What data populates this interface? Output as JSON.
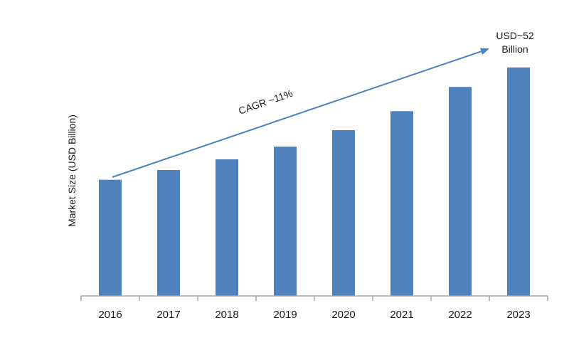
{
  "chart_data": {
    "type": "bar",
    "categories": [
      "2016",
      "2017",
      "2018",
      "2019",
      "2020",
      "2021",
      "2022",
      "2023"
    ],
    "values": [
      23.9,
      25.9,
      28.1,
      30.7,
      34.1,
      38.0,
      43.0,
      47.0
    ],
    "ylabel": "Market Size (USD Billion)",
    "xlabel": "",
    "ylim": [
      0,
      48
    ],
    "grid": false,
    "colors": {
      "bar": "#4f81bd",
      "arrow": "#4f81bd",
      "axis": "#a6a6a6"
    },
    "annotations": {
      "cagr": "CAGR ~11%",
      "end_value_line1": "USD~52",
      "end_value_line2": "Billion"
    }
  }
}
